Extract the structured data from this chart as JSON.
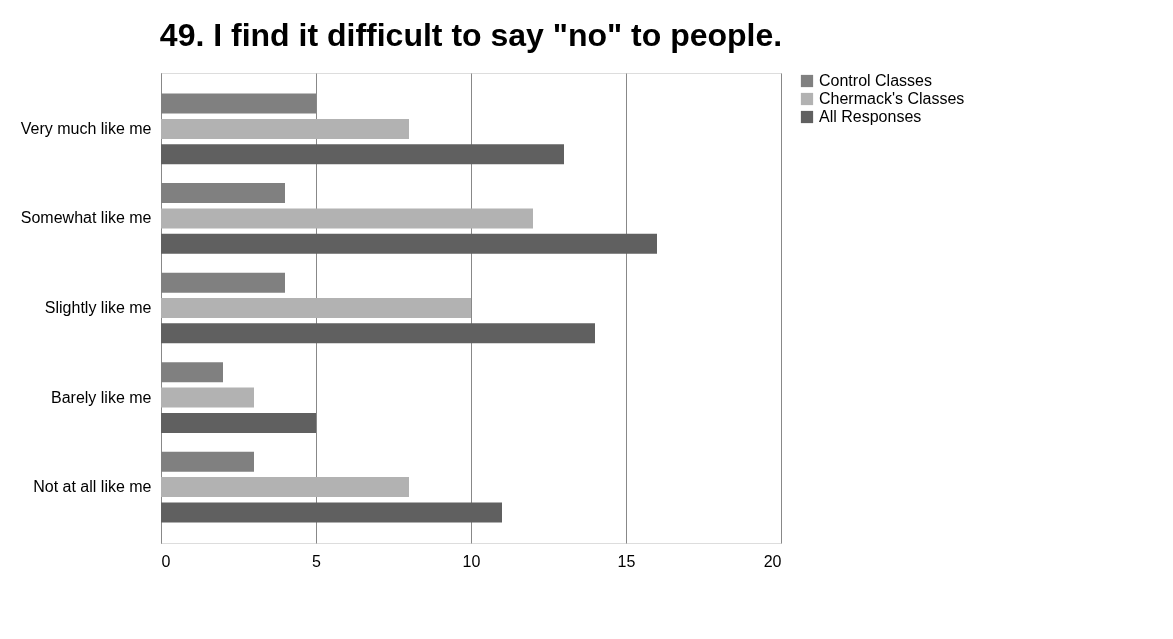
{
  "chart_data": {
    "type": "bar",
    "orientation": "horizontal",
    "title": "49. I find it difficult to say \"no\" to people.",
    "categories": [
      "Very much like me",
      "Somewhat like me",
      "Slightly like me",
      "Barely like me",
      "Not at all like me"
    ],
    "series": [
      {
        "name": "Control Classes",
        "color": "#808080",
        "values": [
          5,
          4,
          4,
          2,
          3
        ]
      },
      {
        "name": "Chermack's Classes",
        "color": "#b2b2b2",
        "values": [
          8,
          12,
          10,
          3,
          8
        ]
      },
      {
        "name": "All Responses",
        "color": "#606060",
        "values": [
          13,
          16,
          14,
          5,
          11
        ]
      }
    ],
    "xlim": [
      0,
      20
    ],
    "xticks": [
      0,
      5,
      10,
      15,
      20
    ],
    "grid": "x",
    "legend": "right"
  }
}
